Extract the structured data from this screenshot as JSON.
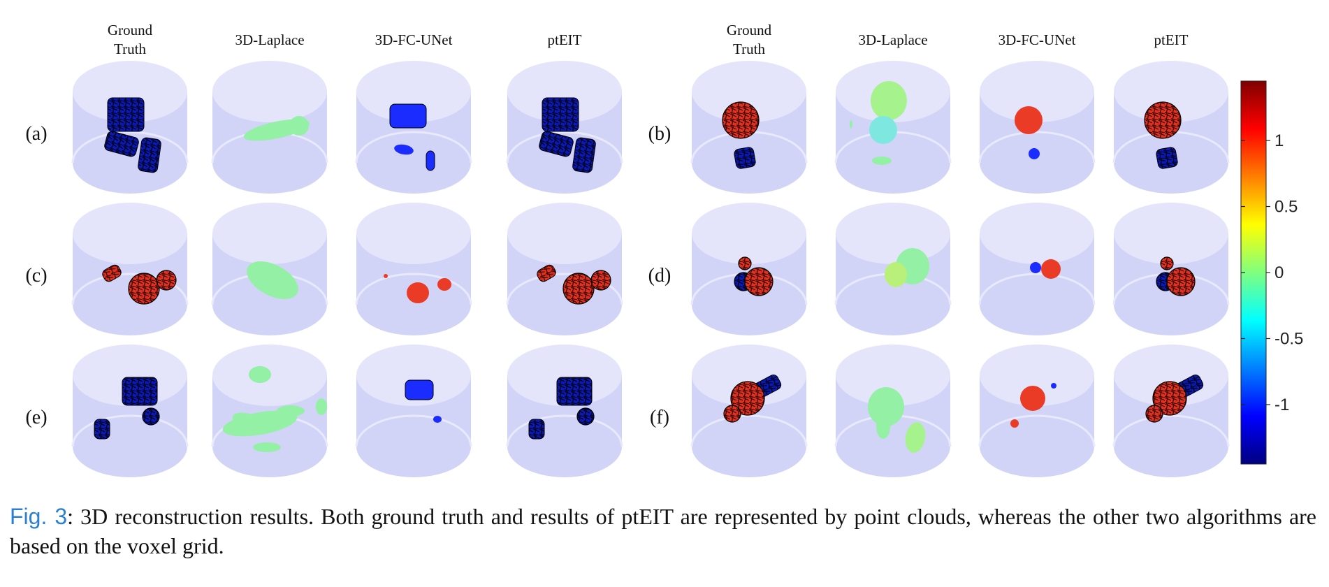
{
  "figure": {
    "column_headers": [
      [
        "Ground",
        "Truth"
      ],
      [
        "3D-Laplace"
      ],
      [
        "3D-FC-UNet"
      ],
      [
        "ptEIT"
      ],
      [
        "Ground",
        "Truth"
      ],
      [
        "3D-Laplace"
      ],
      [
        "3D-FC-UNet"
      ],
      [
        "ptEIT"
      ]
    ],
    "row_labels_left": [
      "(a)",
      "(c)",
      "(e)"
    ],
    "row_labels_right": [
      "(b)",
      "(d)",
      "(f)"
    ],
    "colorbar": {
      "tick_labels": [
        "1",
        "0.5",
        "0",
        "-0.5",
        "-1"
      ],
      "tick_values": [
        1,
        0.5,
        0,
        -0.5,
        -1
      ],
      "range": [
        -1.45,
        1.45
      ],
      "colormap": "jet"
    }
  },
  "caption": {
    "figref": "Fig. 3",
    "text": ": 3D reconstruction results. Both ground truth and results of ptEIT are represented by point clouds, whereas the other two algorithms are based on the voxel grid."
  },
  "colors": {
    "cylinder": "#d4d6f8",
    "blue_object": "#0a1ab8",
    "red_object": "#e0321e",
    "green_blob": "#8ff0a0",
    "figref": "#2b7fd1"
  }
}
